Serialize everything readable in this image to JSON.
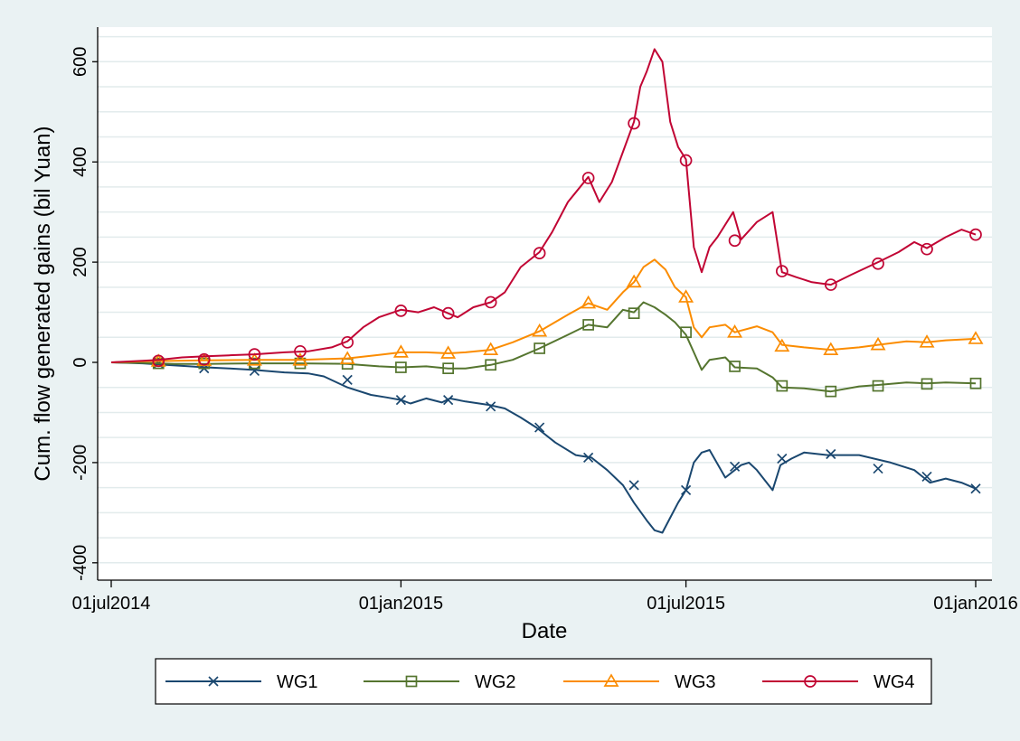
{
  "chart_data": {
    "type": "line",
    "title": "",
    "xlabel": "Date",
    "ylabel": "Cum. flow generated gains (bil Yuan)",
    "xlim": [
      0,
      549
    ],
    "ylim": [
      -400,
      680
    ],
    "y_ticks": [
      -400,
      -200,
      0,
      200,
      400,
      600
    ],
    "x_ticks": [
      {
        "day": 0,
        "label": "01jul2014"
      },
      {
        "day": 184,
        "label": "01jan2015"
      },
      {
        "day": 365,
        "label": "01jul2015"
      },
      {
        "day": 549,
        "label": "01jan2016"
      }
    ],
    "grid": true,
    "legend_position": "bottom",
    "series": [
      {
        "name": "WG1",
        "color": "#1a476f",
        "marker": "x",
        "points": [
          [
            0,
            0
          ],
          [
            20,
            -2
          ],
          [
            30,
            -4
          ],
          [
            45,
            -7
          ],
          [
            60,
            -10
          ],
          [
            75,
            -12
          ],
          [
            90,
            -15
          ],
          [
            110,
            -20
          ],
          [
            125,
            -22
          ],
          [
            135,
            -28
          ],
          [
            150,
            -50
          ],
          [
            165,
            -65
          ],
          [
            175,
            -70
          ],
          [
            184,
            -75
          ],
          [
            190,
            -82
          ],
          [
            200,
            -72
          ],
          [
            210,
            -80
          ],
          [
            215,
            -72
          ],
          [
            225,
            -78
          ],
          [
            240,
            -85
          ],
          [
            250,
            -92
          ],
          [
            260,
            -110
          ],
          [
            270,
            -130
          ],
          [
            282,
            -160
          ],
          [
            295,
            -185
          ],
          [
            305,
            -190
          ],
          [
            315,
            -215
          ],
          [
            325,
            -245
          ],
          [
            332,
            -280
          ],
          [
            340,
            -315
          ],
          [
            345,
            -335
          ],
          [
            350,
            -340
          ],
          [
            355,
            -310
          ],
          [
            360,
            -280
          ],
          [
            365,
            -255
          ],
          [
            370,
            -200
          ],
          [
            375,
            -180
          ],
          [
            380,
            -175
          ],
          [
            390,
            -230
          ],
          [
            400,
            -205
          ],
          [
            405,
            -200
          ],
          [
            410,
            -215
          ],
          [
            420,
            -255
          ],
          [
            425,
            -205
          ],
          [
            432,
            -192
          ],
          [
            440,
            -180
          ],
          [
            455,
            -185
          ],
          [
            475,
            -185
          ],
          [
            495,
            -200
          ],
          [
            510,
            -215
          ],
          [
            520,
            -240
          ],
          [
            530,
            -232
          ],
          [
            540,
            -240
          ],
          [
            549,
            -252
          ]
        ],
        "markers": [
          [
            30,
            -2
          ],
          [
            59,
            -12
          ],
          [
            91,
            -17
          ],
          [
            150,
            -35
          ],
          [
            184,
            -75
          ],
          [
            214,
            -75
          ],
          [
            241,
            -88
          ],
          [
            272,
            -130
          ],
          [
            303,
            -190
          ],
          [
            332,
            -245
          ],
          [
            365,
            -255
          ],
          [
            396,
            -208
          ],
          [
            426,
            -192
          ],
          [
            457,
            -183
          ],
          [
            487,
            -212
          ],
          [
            518,
            -228
          ],
          [
            549,
            -252
          ]
        ]
      },
      {
        "name": "WG2",
        "color": "#55752f",
        "marker": "square",
        "points": [
          [
            0,
            0
          ],
          [
            20,
            -1
          ],
          [
            40,
            -3
          ],
          [
            60,
            -3
          ],
          [
            90,
            -2
          ],
          [
            120,
            -2
          ],
          [
            150,
            -3
          ],
          [
            170,
            -8
          ],
          [
            184,
            -10
          ],
          [
            200,
            -8
          ],
          [
            214,
            -12
          ],
          [
            225,
            -12
          ],
          [
            241,
            -5
          ],
          [
            255,
            5
          ],
          [
            272,
            28
          ],
          [
            290,
            55
          ],
          [
            303,
            75
          ],
          [
            315,
            70
          ],
          [
            325,
            105
          ],
          [
            332,
            100
          ],
          [
            338,
            120
          ],
          [
            345,
            110
          ],
          [
            352,
            95
          ],
          [
            358,
            80
          ],
          [
            365,
            55
          ],
          [
            370,
            20
          ],
          [
            375,
            -15
          ],
          [
            380,
            5
          ],
          [
            390,
            10
          ],
          [
            396,
            -10
          ],
          [
            410,
            -12
          ],
          [
            420,
            -30
          ],
          [
            426,
            -50
          ],
          [
            440,
            -52
          ],
          [
            457,
            -58
          ],
          [
            475,
            -48
          ],
          [
            487,
            -45
          ],
          [
            505,
            -40
          ],
          [
            518,
            -42
          ],
          [
            530,
            -40
          ],
          [
            549,
            -42
          ]
        ],
        "markers": [
          [
            30,
            -2
          ],
          [
            59,
            -2
          ],
          [
            91,
            -2
          ],
          [
            120,
            -2
          ],
          [
            150,
            -3
          ],
          [
            184,
            -10
          ],
          [
            214,
            -12
          ],
          [
            241,
            -5
          ],
          [
            272,
            28
          ],
          [
            303,
            75
          ],
          [
            332,
            98
          ],
          [
            365,
            60
          ],
          [
            396,
            -8
          ],
          [
            426,
            -47
          ],
          [
            457,
            -58
          ],
          [
            487,
            -47
          ],
          [
            518,
            -43
          ],
          [
            549,
            -42
          ]
        ]
      },
      {
        "name": "WG3",
        "color": "#fb8c00",
        "marker": "triangle",
        "points": [
          [
            0,
            0
          ],
          [
            20,
            2
          ],
          [
            40,
            3
          ],
          [
            60,
            4
          ],
          [
            90,
            5
          ],
          [
            120,
            5
          ],
          [
            150,
            8
          ],
          [
            170,
            15
          ],
          [
            184,
            20
          ],
          [
            200,
            20
          ],
          [
            214,
            18
          ],
          [
            225,
            20
          ],
          [
            241,
            25
          ],
          [
            255,
            40
          ],
          [
            272,
            62
          ],
          [
            290,
            95
          ],
          [
            303,
            118
          ],
          [
            315,
            105
          ],
          [
            325,
            140
          ],
          [
            332,
            160
          ],
          [
            338,
            190
          ],
          [
            345,
            205
          ],
          [
            352,
            185
          ],
          [
            358,
            150
          ],
          [
            365,
            130
          ],
          [
            370,
            70
          ],
          [
            375,
            50
          ],
          [
            380,
            70
          ],
          [
            390,
            75
          ],
          [
            396,
            60
          ],
          [
            410,
            72
          ],
          [
            420,
            60
          ],
          [
            426,
            35
          ],
          [
            440,
            30
          ],
          [
            457,
            25
          ],
          [
            475,
            30
          ],
          [
            487,
            35
          ],
          [
            505,
            42
          ],
          [
            518,
            40
          ],
          [
            530,
            44
          ],
          [
            549,
            47
          ]
        ],
        "markers": [
          [
            30,
            2
          ],
          [
            59,
            3
          ],
          [
            91,
            4
          ],
          [
            120,
            4
          ],
          [
            150,
            7
          ],
          [
            184,
            20
          ],
          [
            214,
            18
          ],
          [
            241,
            25
          ],
          [
            272,
            62
          ],
          [
            303,
            118
          ],
          [
            332,
            160
          ],
          [
            365,
            130
          ],
          [
            396,
            60
          ],
          [
            426,
            32
          ],
          [
            457,
            25
          ],
          [
            487,
            35
          ],
          [
            518,
            40
          ],
          [
            549,
            47
          ]
        ]
      },
      {
        "name": "WG4",
        "color": "#c10534",
        "marker": "circle",
        "points": [
          [
            0,
            0
          ],
          [
            20,
            3
          ],
          [
            30,
            5
          ],
          [
            45,
            10
          ],
          [
            60,
            12
          ],
          [
            75,
            14
          ],
          [
            91,
            16
          ],
          [
            110,
            20
          ],
          [
            125,
            22
          ],
          [
            140,
            30
          ],
          [
            150,
            42
          ],
          [
            160,
            70
          ],
          [
            170,
            90
          ],
          [
            184,
            105
          ],
          [
            195,
            100
          ],
          [
            205,
            110
          ],
          [
            214,
            98
          ],
          [
            220,
            90
          ],
          [
            230,
            110
          ],
          [
            241,
            120
          ],
          [
            250,
            140
          ],
          [
            260,
            190
          ],
          [
            272,
            220
          ],
          [
            280,
            260
          ],
          [
            290,
            320
          ],
          [
            303,
            370
          ],
          [
            310,
            320
          ],
          [
            318,
            360
          ],
          [
            325,
            420
          ],
          [
            332,
            480
          ],
          [
            336,
            550
          ],
          [
            340,
            580
          ],
          [
            345,
            625
          ],
          [
            350,
            600
          ],
          [
            355,
            480
          ],
          [
            360,
            430
          ],
          [
            365,
            405
          ],
          [
            370,
            230
          ],
          [
            375,
            180
          ],
          [
            380,
            230
          ],
          [
            385,
            250
          ],
          [
            395,
            300
          ],
          [
            400,
            245
          ],
          [
            410,
            280
          ],
          [
            420,
            300
          ],
          [
            426,
            180
          ],
          [
            435,
            170
          ],
          [
            445,
            160
          ],
          [
            457,
            155
          ],
          [
            470,
            175
          ],
          [
            487,
            200
          ],
          [
            500,
            220
          ],
          [
            510,
            240
          ],
          [
            518,
            228
          ],
          [
            530,
            250
          ],
          [
            540,
            265
          ],
          [
            549,
            255
          ]
        ],
        "markers": [
          [
            30,
            3
          ],
          [
            59,
            6
          ],
          [
            91,
            16
          ],
          [
            120,
            22
          ],
          [
            150,
            40
          ],
          [
            184,
            103
          ],
          [
            214,
            98
          ],
          [
            241,
            120
          ],
          [
            272,
            218
          ],
          [
            303,
            368
          ],
          [
            332,
            477
          ],
          [
            365,
            403
          ],
          [
            396,
            243
          ],
          [
            426,
            182
          ],
          [
            457,
            155
          ],
          [
            487,
            197
          ],
          [
            518,
            226
          ],
          [
            549,
            255
          ]
        ]
      }
    ]
  }
}
